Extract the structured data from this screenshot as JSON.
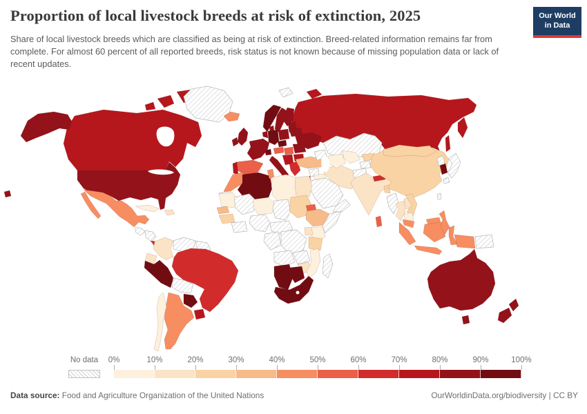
{
  "header": {
    "title": "Proportion of local livestock breeds at risk of extinction, 2025",
    "subtitle": "Share of local livestock breeds which are classified as being at risk of extinction. Breed-related information remains far from complete. For almost 60 percent of all reported breeds, risk status is not known because of missing population data or lack of recent updates.",
    "logo_line1": "Our World",
    "logo_line2": "in Data",
    "logo_bg_color": "#1d3d63",
    "logo_accent_color": "#dc3a31"
  },
  "footer": {
    "source_label": "Data source:",
    "source_text": " Food and Agriculture Organization of the United Nations",
    "url_text": "OurWorldinData.org/biodiversity",
    "separator": " | ",
    "license_text": "CC BY"
  },
  "chart_data": {
    "type": "heatmap",
    "subtype": "choropleth-world-map",
    "title": "Proportion of local livestock breeds at risk of extinction, 2025",
    "unit": "% of local livestock breeds at risk of extinction",
    "no_data_label": "No data",
    "legend_tick_labels": [
      "0%",
      "10%",
      "20%",
      "30%",
      "40%",
      "50%",
      "60%",
      "70%",
      "80%",
      "90%",
      "100%"
    ],
    "color_bins": [
      {
        "range": "0-10%",
        "color": "#fdf0dd"
      },
      {
        "range": "10-20%",
        "color": "#fbe3c5"
      },
      {
        "range": "20-30%",
        "color": "#f9d3a3"
      },
      {
        "range": "30-40%",
        "color": "#f6bb88"
      },
      {
        "range": "40-50%",
        "color": "#f68e61"
      },
      {
        "range": "50-60%",
        "color": "#ea6049"
      },
      {
        "range": "60-70%",
        "color": "#d22b2c"
      },
      {
        "range": "70-80%",
        "color": "#b5171d"
      },
      {
        "range": "80-90%",
        "color": "#94121a"
      },
      {
        "range": "90-100%",
        "color": "#710c13"
      }
    ],
    "regions": [
      {
        "id": "russia",
        "name": "Russia",
        "value_range": "70-80%"
      },
      {
        "id": "kazakhstan",
        "name": "Kazakhstan",
        "value_range": "No data"
      },
      {
        "id": "canada",
        "name": "Canada",
        "value_range": "70-80%"
      },
      {
        "id": "united-states",
        "name": "United States",
        "value_range": "80-90%"
      },
      {
        "id": "greenland",
        "name": "Greenland",
        "value_range": "No data"
      },
      {
        "id": "mexico",
        "name": "Mexico",
        "value_range": "40-50%"
      },
      {
        "id": "guatemala",
        "name": "Guatemala",
        "value_range": "No data"
      },
      {
        "id": "honduras-nicaragua",
        "name": "Honduras & Nicaragua",
        "value_range": "No data"
      },
      {
        "id": "costa-rica-panama",
        "name": "Costa Rica & Panama",
        "value_range": "60-70%"
      },
      {
        "id": "cuba",
        "name": "Cuba",
        "value_range": "0-10%"
      },
      {
        "id": "hispaniola",
        "name": "Hispaniola",
        "value_range": "10-20%"
      },
      {
        "id": "colombia",
        "name": "Colombia",
        "value_range": "10-20%"
      },
      {
        "id": "venezuela",
        "name": "Venezuela",
        "value_range": "No data"
      },
      {
        "id": "guyanas",
        "name": "Guyanas",
        "value_range": "No data"
      },
      {
        "id": "ecuador",
        "name": "Ecuador",
        "value_range": "10-20%"
      },
      {
        "id": "peru",
        "name": "Peru",
        "value_range": "90-100%"
      },
      {
        "id": "brazil",
        "name": "Brazil",
        "value_range": "60-70%"
      },
      {
        "id": "bolivia",
        "name": "Bolivia",
        "value_range": "No data"
      },
      {
        "id": "paraguay",
        "name": "Paraguay",
        "value_range": "90-100%"
      },
      {
        "id": "uruguay",
        "name": "Uruguay",
        "value_range": "70-80%"
      },
      {
        "id": "argentina",
        "name": "Argentina",
        "value_range": "40-50%"
      },
      {
        "id": "chile",
        "name": "Chile",
        "value_range": "0-10%"
      },
      {
        "id": "iceland",
        "name": "Iceland",
        "value_range": "40-50%"
      },
      {
        "id": "united-kingdom",
        "name": "United Kingdom",
        "value_range": "80-90%"
      },
      {
        "id": "ireland",
        "name": "Ireland",
        "value_range": "80-90%"
      },
      {
        "id": "norway",
        "name": "Norway",
        "value_range": "90-100%"
      },
      {
        "id": "sweden",
        "name": "Sweden",
        "value_range": "80-90%"
      },
      {
        "id": "finland",
        "name": "Finland",
        "value_range": "80-90%"
      },
      {
        "id": "denmark",
        "name": "Denmark",
        "value_range": "80-90%"
      },
      {
        "id": "baltic-states",
        "name": "Baltic states",
        "value_range": "80-90%"
      },
      {
        "id": "belarus",
        "name": "Belarus",
        "value_range": "80-90%"
      },
      {
        "id": "poland",
        "name": "Poland",
        "value_range": "80-90%"
      },
      {
        "id": "germany",
        "name": "Germany",
        "value_range": "90-100%"
      },
      {
        "id": "benelux",
        "name": "Benelux",
        "value_range": "80-90%"
      },
      {
        "id": "france",
        "name": "France",
        "value_range": "80-90%"
      },
      {
        "id": "spain",
        "name": "Spain",
        "value_range": "50-60%"
      },
      {
        "id": "portugal",
        "name": "Portugal",
        "value_range": "70-80%"
      },
      {
        "id": "italy",
        "name": "Italy",
        "value_range": "80-90%"
      },
      {
        "id": "switzerland",
        "name": "Switzerland",
        "value_range": "90-100%"
      },
      {
        "id": "czechia",
        "name": "Czechia",
        "value_range": "90-100%"
      },
      {
        "id": "austria",
        "name": "Austria",
        "value_range": "50-60%"
      },
      {
        "id": "hungary",
        "name": "Hungary",
        "value_range": "50-60%"
      },
      {
        "id": "balkans",
        "name": "Western Balkans",
        "value_range": "70-80%"
      },
      {
        "id": "romania",
        "name": "Romania",
        "value_range": "80-90%"
      },
      {
        "id": "bulgaria",
        "name": "Bulgaria",
        "value_range": "70-80%"
      },
      {
        "id": "greece",
        "name": "Greece",
        "value_range": "60-70%"
      },
      {
        "id": "ukraine",
        "name": "Ukraine",
        "value_range": "80-90%"
      },
      {
        "id": "svalbard",
        "name": "Svalbard",
        "value_range": "No data"
      },
      {
        "id": "turkey",
        "name": "Turkey",
        "value_range": "30-40%"
      },
      {
        "id": "caucasus",
        "name": "Caucasus",
        "value_range": "No data"
      },
      {
        "id": "syria",
        "name": "Syria",
        "value_range": "No data"
      },
      {
        "id": "iraq",
        "name": "Iraq",
        "value_range": "0-10%"
      },
      {
        "id": "israel-jordan",
        "name": "Israel & Jordan",
        "value_range": "70-80%"
      },
      {
        "id": "saudi-arabia",
        "name": "Saudi Arabia",
        "value_range": "No data"
      },
      {
        "id": "yemen-oman",
        "name": "Yemen & Oman",
        "value_range": "No data"
      },
      {
        "id": "iran",
        "name": "Iran",
        "value_range": "10-20%"
      },
      {
        "id": "afghanistan",
        "name": "Afghanistan",
        "value_range": "No data"
      },
      {
        "id": "pakistan",
        "name": "Pakistan",
        "value_range": "10-20%"
      },
      {
        "id": "turkmenistan",
        "name": "Turkmenistan",
        "value_range": "0-10%"
      },
      {
        "id": "uzbekistan",
        "name": "Uzbekistan",
        "value_range": "0-10%"
      },
      {
        "id": "kyrgyzstan",
        "name": "Kyrgyzstan",
        "value_range": "20-30%"
      },
      {
        "id": "tajikistan",
        "name": "Tajikistan",
        "value_range": "No data"
      },
      {
        "id": "morocco",
        "name": "Morocco",
        "value_range": "40-50%"
      },
      {
        "id": "western-sahara",
        "name": "Western Sahara",
        "value_range": "No data"
      },
      {
        "id": "algeria",
        "name": "Algeria",
        "value_range": "90-100%"
      },
      {
        "id": "tunisia",
        "name": "Tunisia",
        "value_range": "40-50%"
      },
      {
        "id": "libya",
        "name": "Libya",
        "value_range": "0-10%"
      },
      {
        "id": "egypt",
        "name": "Egypt",
        "value_range": "10-20%"
      },
      {
        "id": "mauritania",
        "name": "Mauritania",
        "value_range": "0-10%"
      },
      {
        "id": "mali",
        "name": "Mali",
        "value_range": "No data"
      },
      {
        "id": "niger",
        "name": "Niger",
        "value_range": "0-10%"
      },
      {
        "id": "chad",
        "name": "Chad",
        "value_range": "No data"
      },
      {
        "id": "sudan",
        "name": "Sudan",
        "value_range": "20-30%"
      },
      {
        "id": "senegal",
        "name": "Senegal",
        "value_range": "30-40%"
      },
      {
        "id": "guinea",
        "name": "Guinea",
        "value_range": "20-30%"
      },
      {
        "id": "ivory-coast-ghana",
        "name": "Côte d'Ivoire & Ghana",
        "value_range": "No data"
      },
      {
        "id": "nigeria",
        "name": "Nigeria",
        "value_range": "No data"
      },
      {
        "id": "cameroon-car",
        "name": "Cameroon & Central Africa",
        "value_range": "No data"
      },
      {
        "id": "congo-gabon",
        "name": "Congo & Gabon",
        "value_range": "No data"
      },
      {
        "id": "drc",
        "name": "Democratic Republic of Congo",
        "value_range": "No data"
      },
      {
        "id": "eritrea",
        "name": "Eritrea",
        "value_range": "50-60%"
      },
      {
        "id": "ethiopia",
        "name": "Ethiopia",
        "value_range": "30-40%"
      },
      {
        "id": "somalia",
        "name": "Somalia",
        "value_range": "No data"
      },
      {
        "id": "kenya",
        "name": "Kenya",
        "value_range": "0-10%"
      },
      {
        "id": "uganda",
        "name": "Uganda",
        "value_range": "10-20%"
      },
      {
        "id": "tanzania",
        "name": "Tanzania",
        "value_range": "20-30%"
      },
      {
        "id": "angola",
        "name": "Angola",
        "value_range": "No data"
      },
      {
        "id": "zambia",
        "name": "Zambia",
        "value_range": "No data"
      },
      {
        "id": "zimbabwe",
        "name": "Zimbabwe",
        "value_range": "10-20%"
      },
      {
        "id": "mozambique",
        "name": "Mozambique",
        "value_range": "0-10%"
      },
      {
        "id": "madagascar",
        "name": "Madagascar",
        "value_range": "No data"
      },
      {
        "id": "namibia",
        "name": "Namibia",
        "value_range": "90-100%"
      },
      {
        "id": "botswana",
        "name": "Botswana",
        "value_range": "90-100%"
      },
      {
        "id": "south-africa",
        "name": "South Africa",
        "value_range": "90-100%"
      },
      {
        "id": "india",
        "name": "India",
        "value_range": "10-20%"
      },
      {
        "id": "nepal",
        "name": "Nepal",
        "value_range": "60-70%"
      },
      {
        "id": "bangladesh",
        "name": "Bangladesh",
        "value_range": "20-30%"
      },
      {
        "id": "sri-lanka",
        "name": "Sri Lanka",
        "value_range": "50-60%"
      },
      {
        "id": "china",
        "name": "China",
        "value_range": "20-30%"
      },
      {
        "id": "mongolia",
        "name": "Mongolia",
        "value_range": "20-30%"
      },
      {
        "id": "north-korea",
        "name": "North Korea",
        "value_range": "No data"
      },
      {
        "id": "south-korea",
        "name": "South Korea",
        "value_range": "90-100%"
      },
      {
        "id": "japan",
        "name": "Japan",
        "value_range": "No data"
      },
      {
        "id": "taiwan",
        "name": "Taiwan",
        "value_range": "No data"
      },
      {
        "id": "myanmar",
        "name": "Myanmar",
        "value_range": "No data"
      },
      {
        "id": "thailand",
        "name": "Thailand",
        "value_range": "10-20%"
      },
      {
        "id": "laos",
        "name": "Laos",
        "value_range": "10-20%"
      },
      {
        "id": "vietnam",
        "name": "Vietnam",
        "value_range": "20-30%"
      },
      {
        "id": "cambodia",
        "name": "Cambodia",
        "value_range": "0-10%"
      },
      {
        "id": "malaysia",
        "name": "Malaysia",
        "value_range": "40-50%"
      },
      {
        "id": "indonesia",
        "name": "Indonesia",
        "value_range": "40-50%"
      },
      {
        "id": "philippines",
        "name": "Philippines",
        "value_range": "40-50%"
      },
      {
        "id": "papua-new-guinea",
        "name": "Papua New Guinea",
        "value_range": "No data"
      },
      {
        "id": "australia",
        "name": "Australia",
        "value_range": "80-90%"
      },
      {
        "id": "new-zealand",
        "name": "New Zealand",
        "value_range": "80-90%"
      }
    ]
  }
}
